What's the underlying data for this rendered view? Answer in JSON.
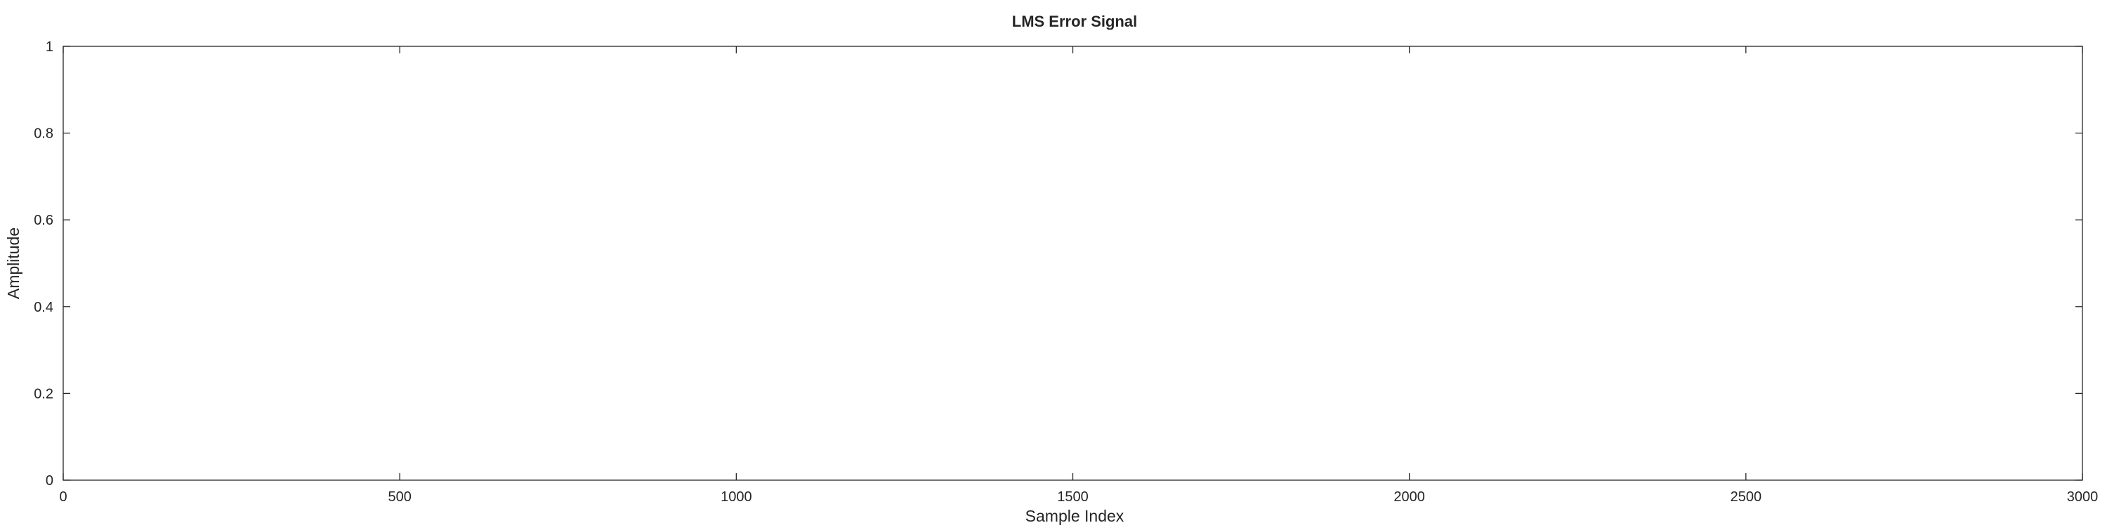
{
  "chart_data": {
    "type": "line",
    "title": "LMS Error Signal",
    "xlabel": "Sample Index",
    "ylabel": "Amplitude",
    "xlim": [
      0,
      3000
    ],
    "ylim": [
      0,
      1
    ],
    "xticks": [
      0,
      500,
      1000,
      1500,
      2000,
      2500,
      3000
    ],
    "xtick_labels": [
      "0",
      "500",
      "1000",
      "1500",
      "2000",
      "2500",
      "3000"
    ],
    "yticks": [
      0,
      0.2,
      0.4,
      0.6,
      0.8,
      1
    ],
    "ytick_labels": [
      "0",
      "0.2",
      "0.4",
      "0.6",
      "0.8",
      "1"
    ],
    "grid": false,
    "series": []
  },
  "colors": {
    "axes": "#262626",
    "background": "#ffffff"
  }
}
